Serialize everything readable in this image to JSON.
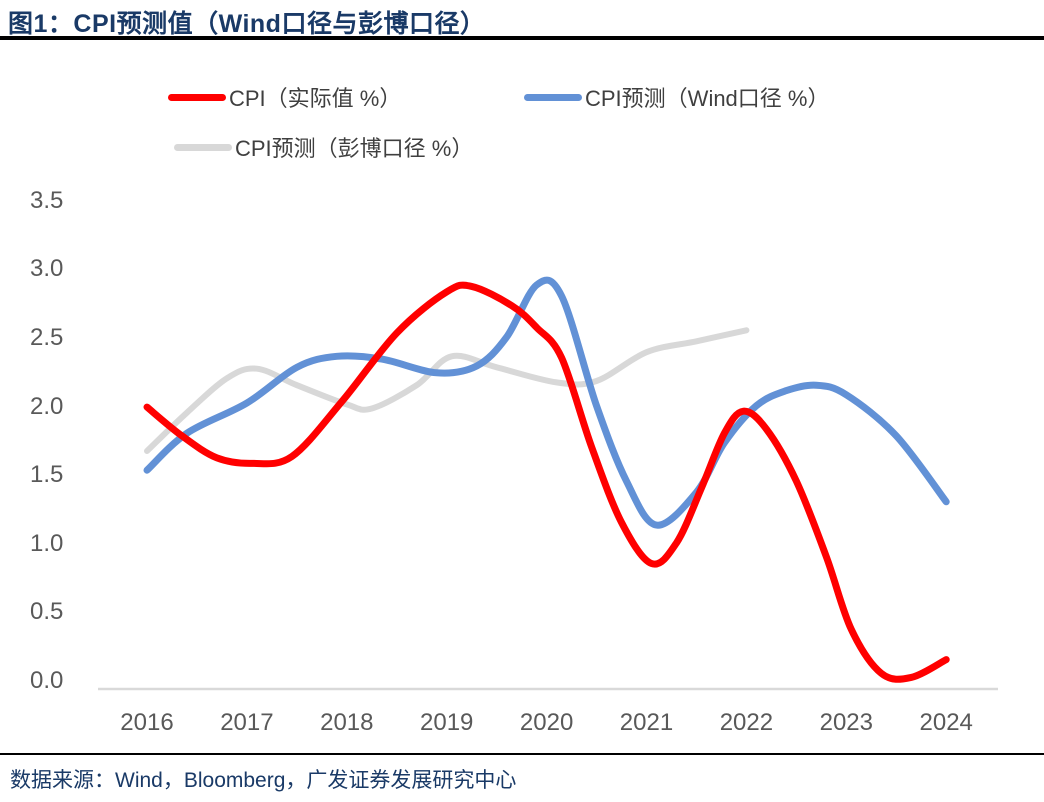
{
  "figure": {
    "title": "图1：CPI预测值（Wind口径与彭博口径）",
    "source": "数据来源：Wind，Bloomberg，广发证券发展研究中心"
  },
  "colors": {
    "actual_red": "#FF0000",
    "wind_blue": "#6291D6",
    "bloomberg_gray": "#D8D8D8",
    "title_navy": "#1A3A67",
    "axis_text_gray": "#595959",
    "baseline_gray": "#D9D9D9",
    "rule_black": "#000000"
  },
  "chart_data": {
    "type": "line",
    "title": "图1：CPI预测值（Wind口径与彭博口径）",
    "xlabel": "",
    "ylabel": "",
    "unit": "%",
    "xlim": [
      2016,
      2024
    ],
    "ylim": [
      0.0,
      3.5
    ],
    "x_ticks": [
      2016,
      2017,
      2018,
      2019,
      2020,
      2021,
      2022,
      2023,
      2024
    ],
    "y_ticks": [
      3.5,
      3.0,
      2.5,
      2.0,
      1.5,
      1.0,
      0.5,
      0.0
    ],
    "grid": false,
    "legend_position": "top-left two rows",
    "series": [
      {
        "name": "CPI（实际值 %）",
        "color": "#FF0000",
        "points": [
          [
            2016.0,
            2.04
          ],
          [
            2016.35,
            1.83
          ],
          [
            2016.7,
            1.67
          ],
          [
            2017.05,
            1.63
          ],
          [
            2017.45,
            1.68
          ],
          [
            2017.95,
            2.08
          ],
          [
            2018.5,
            2.58
          ],
          [
            2019.0,
            2.88
          ],
          [
            2019.25,
            2.92
          ],
          [
            2019.65,
            2.78
          ],
          [
            2019.9,
            2.62
          ],
          [
            2020.15,
            2.4
          ],
          [
            2020.45,
            1.75
          ],
          [
            2020.75,
            1.2
          ],
          [
            2021.05,
            0.9
          ],
          [
            2021.3,
            1.05
          ],
          [
            2021.55,
            1.45
          ],
          [
            2021.78,
            1.85
          ],
          [
            2021.97,
            2.01
          ],
          [
            2022.2,
            1.88
          ],
          [
            2022.5,
            1.5
          ],
          [
            2022.8,
            0.95
          ],
          [
            2023.05,
            0.42
          ],
          [
            2023.35,
            0.1
          ],
          [
            2023.65,
            0.07
          ],
          [
            2024.0,
            0.2
          ]
        ]
      },
      {
        "name": "CPI预测（Wind口径 %）",
        "color": "#6291D6",
        "points": [
          [
            2016.0,
            1.58
          ],
          [
            2016.4,
            1.85
          ],
          [
            2017.0,
            2.07
          ],
          [
            2017.5,
            2.33
          ],
          [
            2017.9,
            2.41
          ],
          [
            2018.35,
            2.39
          ],
          [
            2018.9,
            2.29
          ],
          [
            2019.3,
            2.34
          ],
          [
            2019.6,
            2.55
          ],
          [
            2019.9,
            2.93
          ],
          [
            2020.15,
            2.85
          ],
          [
            2020.5,
            2.05
          ],
          [
            2020.8,
            1.5
          ],
          [
            2021.1,
            1.18
          ],
          [
            2021.5,
            1.42
          ],
          [
            2021.78,
            1.78
          ],
          [
            2022.1,
            2.05
          ],
          [
            2022.4,
            2.16
          ],
          [
            2022.7,
            2.2
          ],
          [
            2023.0,
            2.13
          ],
          [
            2023.5,
            1.83
          ],
          [
            2024.0,
            1.35
          ]
        ]
      },
      {
        "name": "CPI预测（彭博口径 %）",
        "color": "#D8D8D8",
        "points": [
          [
            2016.0,
            1.72
          ],
          [
            2016.4,
            2.0
          ],
          [
            2016.8,
            2.25
          ],
          [
            2017.1,
            2.32
          ],
          [
            2017.5,
            2.2
          ],
          [
            2018.0,
            2.06
          ],
          [
            2018.25,
            2.03
          ],
          [
            2018.7,
            2.2
          ],
          [
            2019.05,
            2.41
          ],
          [
            2019.5,
            2.33
          ],
          [
            2020.1,
            2.22
          ],
          [
            2020.5,
            2.23
          ],
          [
            2021.0,
            2.44
          ],
          [
            2021.5,
            2.52
          ],
          [
            2022.0,
            2.6
          ]
        ]
      }
    ]
  }
}
